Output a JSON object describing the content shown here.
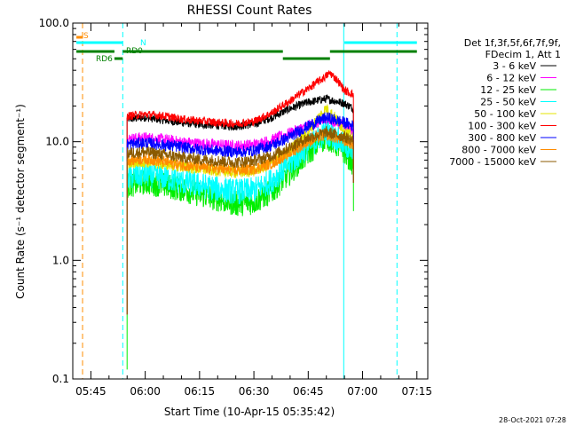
{
  "chart_data": {
    "type": "line",
    "title": "RHESSI Count Rates",
    "xlabel": "Start Time (10-Apr-15 05:35:42)",
    "ylabel": "Count Rate (s⁻¹ detector segment⁻¹)",
    "ylog": true,
    "ylim": [
      0.1,
      100.0
    ],
    "xlim_minutes": [
      5.5,
      98.0
    ],
    "x_ticks": [
      {
        "min": 40,
        "label": "05:45"
      },
      {
        "min": 55,
        "label": "06:00"
      },
      {
        "min": 70,
        "label": "06:15"
      },
      {
        "min": 85,
        "label": "06:30"
      },
      {
        "min": 100,
        "label": "06:45"
      },
      {
        "min": 115,
        "label": "07:00"
      },
      {
        "min": 130,
        "label": "07:15"
      }
    ],
    "y_ticks": [
      {
        "value": 0.1,
        "label": "0.1"
      },
      {
        "value": 1.0,
        "label": "1.0"
      },
      {
        "value": 10.0,
        "label": "10.0"
      },
      {
        "value": 100.0,
        "label": "100.0"
      }
    ],
    "grid": false,
    "legend_position": "right",
    "legend_header": [
      "Det 1f,3f,5f,6f,7f,9f,",
      "FDecim 1, Att 1"
    ],
    "series": [
      {
        "name": "3 - 6 keV",
        "color": "#000000",
        "x": [
          50,
          55,
          60,
          65,
          70,
          75,
          80,
          85,
          90,
          95,
          100,
          105,
          110,
          112.5
        ],
        "y": [
          15.5,
          16,
          15.2,
          14.5,
          14,
          13.7,
          13.5,
          14,
          16,
          19,
          21.5,
          23,
          21,
          19
        ]
      },
      {
        "name": "6 - 12 keV",
        "color": "#ff00ff",
        "x": [
          50,
          55,
          60,
          65,
          70,
          75,
          80,
          85,
          90,
          95,
          100,
          105,
          110,
          112.5
        ],
        "y": [
          10.5,
          10.8,
          10.4,
          9.9,
          9.6,
          9.4,
          9.2,
          9.4,
          10.3,
          11.8,
          13.6,
          15.2,
          13.8,
          12.5
        ]
      },
      {
        "name": "12 - 25 keV",
        "color": "#00ee00",
        "x": [
          50,
          55,
          60,
          65,
          70,
          75,
          80,
          85,
          90,
          95,
          100,
          105,
          110,
          112.5
        ],
        "y": [
          4.3,
          4.6,
          4.3,
          4.0,
          3.6,
          3.3,
          3.0,
          3.1,
          3.8,
          5.5,
          8.0,
          11.0,
          8.2,
          6.5
        ]
      },
      {
        "name": "25 - 50 keV",
        "color": "#00ffff",
        "x": [
          50,
          55,
          60,
          65,
          70,
          75,
          80,
          85,
          90,
          95,
          100,
          105,
          110,
          112.5
        ],
        "y": [
          5.0,
          5.3,
          5.0,
          4.6,
          4.3,
          4.0,
          3.8,
          3.9,
          4.7,
          6.5,
          9.0,
          12.0,
          9.5,
          8.0
        ]
      },
      {
        "name": "50 - 100 keV",
        "color": "#e6e600",
        "x": [
          50,
          55,
          60,
          65,
          70,
          75,
          80,
          85,
          90,
          95,
          100,
          105,
          110,
          112.5
        ],
        "y": [
          6.5,
          6.8,
          6.5,
          6.2,
          5.9,
          5.7,
          5.5,
          5.7,
          6.5,
          8.5,
          12.0,
          19.0,
          12.5,
          10.5
        ]
      },
      {
        "name": "100 - 300 keV",
        "color": "#ff0000",
        "x": [
          50,
          55,
          60,
          65,
          70,
          75,
          80,
          85,
          90,
          95,
          100,
          104,
          106,
          108,
          110,
          112.5
        ],
        "y": [
          16.5,
          17,
          16.5,
          15.5,
          15,
          14.5,
          14.2,
          14.8,
          17.5,
          22,
          28,
          34,
          38,
          33,
          27,
          25
        ]
      },
      {
        "name": "300 - 800 keV",
        "color": "#0000ff",
        "x": [
          50,
          55,
          60,
          65,
          70,
          75,
          80,
          85,
          90,
          95,
          100,
          105,
          110,
          112.5
        ],
        "y": [
          9.5,
          9.8,
          9.4,
          9.0,
          8.6,
          8.4,
          8.2,
          8.4,
          9.3,
          11.0,
          13.5,
          16.0,
          14.5,
          13.5
        ]
      },
      {
        "name": "800 - 7000 keV",
        "color": "#ff8c00",
        "x": [
          50,
          55,
          60,
          65,
          70,
          75,
          80,
          85,
          90,
          95,
          100,
          105,
          110,
          112.5
        ],
        "y": [
          7.0,
          7.2,
          6.8,
          6.4,
          6.1,
          5.9,
          5.7,
          5.9,
          6.6,
          8.0,
          10.0,
          11.5,
          10.2,
          9.5
        ]
      },
      {
        "name": "7000 - 15000 keV",
        "color": "#8b5a00",
        "x": [
          50,
          55,
          60,
          65,
          70,
          75,
          80,
          85,
          90,
          95,
          100,
          105,
          110,
          112.5
        ],
        "y": [
          8.0,
          8.2,
          7.8,
          7.4,
          7.1,
          6.9,
          6.7,
          6.9,
          7.6,
          9.0,
          10.8,
          12.0,
          11.0,
          10.2
        ]
      }
    ],
    "vertical_markers": [
      {
        "min": 37.7,
        "color": "#ff8c00",
        "style": "dashed"
      },
      {
        "min": 48.8,
        "color": "#00ffff",
        "style": "dashed"
      },
      {
        "min": 109.8,
        "color": "#00ffff",
        "style": "solid"
      },
      {
        "min": 124.5,
        "color": "#00ffff",
        "style": "dashed"
      }
    ],
    "state_bars": [
      {
        "label": "S",
        "color": "#ff8c00",
        "level": 1,
        "segments": [
          [
            36,
            37.8
          ]
        ]
      },
      {
        "label": "N",
        "color": "#00ffff",
        "level": 2,
        "segments": [
          [
            36,
            48.8
          ],
          [
            110,
            130
          ]
        ]
      },
      {
        "label": "RD0",
        "color": "#008000",
        "level": 3,
        "segments": [
          [
            36,
            46.5
          ],
          [
            48.8,
            93.0
          ],
          [
            106,
            130
          ]
        ]
      },
      {
        "label": "RD6",
        "color": "#008000",
        "level": 4,
        "segments": [
          [
            46.5,
            48.8
          ],
          [
            93.0,
            106
          ]
        ]
      }
    ],
    "timestamp": "28-Oct-2021 07:28"
  }
}
